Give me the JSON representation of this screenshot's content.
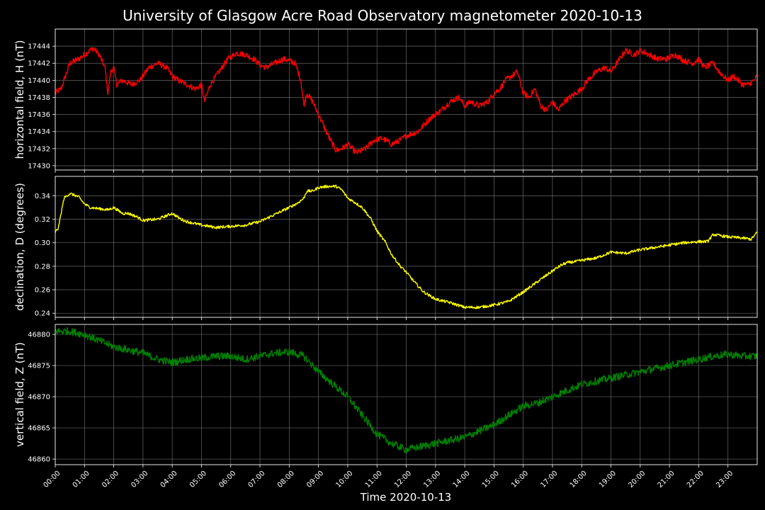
{
  "chart_data": {
    "type": "line",
    "title": "University of Glasgow Acre Road Observatory magnetometer 2020-10-13",
    "xlabel": "Time 2020-10-13",
    "x_unit": "hours",
    "xlim": [
      0,
      24
    ],
    "x_ticks": [
      0,
      1,
      2,
      3,
      4,
      5,
      6,
      7,
      8,
      9,
      10,
      11,
      12,
      13,
      14,
      15,
      16,
      17,
      18,
      19,
      20,
      21,
      22,
      23
    ],
    "x_tick_labels": [
      "00:00",
      "01:00",
      "02:00",
      "03:00",
      "04:00",
      "05:00",
      "06:00",
      "07:00",
      "08:00",
      "09:00",
      "10:00",
      "11:00",
      "12:00",
      "13:00",
      "14:00",
      "15:00",
      "16:00",
      "17:00",
      "18:00",
      "19:00",
      "20:00",
      "21:00",
      "22:00",
      "23:00"
    ],
    "grid": true,
    "background": "#000000",
    "text_color": "#ffffff",
    "grid_color": "#808080",
    "panels": [
      {
        "ylabel": "horizontal field, H (nT)",
        "color": "#ff0000",
        "ylim": [
          17429.5,
          17446
        ],
        "y_ticks": [
          17430,
          17432,
          17434,
          17436,
          17438,
          17440,
          17442,
          17444
        ],
        "y_tick_labels": [
          "17430",
          "17432",
          "17434",
          "17436",
          "17438",
          "17440",
          "17442",
          "17444"
        ],
        "noise": 0.35,
        "x": [
          0,
          0.2,
          0.5,
          0.8,
          1.0,
          1.3,
          1.5,
          1.7,
          1.8,
          1.9,
          2.0,
          2.1,
          2.3,
          2.6,
          2.9,
          3.0,
          3.2,
          3.5,
          3.8,
          4.0,
          4.2,
          4.5,
          4.8,
          5.0,
          5.1,
          5.3,
          5.6,
          5.9,
          6.2,
          6.5,
          6.8,
          7.0,
          7.2,
          7.5,
          7.8,
          8.0,
          8.2,
          8.4,
          8.5,
          8.6,
          8.8,
          9.0,
          9.2,
          9.4,
          9.6,
          9.8,
          10.0,
          10.3,
          10.6,
          10.9,
          11.2,
          11.5,
          11.8,
          12.0,
          12.4,
          12.8,
          13.2,
          13.5,
          13.8,
          14.0,
          14.2,
          14.5,
          14.8,
          15.0,
          15.2,
          15.4,
          15.6,
          15.8,
          16.0,
          16.2,
          16.4,
          16.6,
          16.8,
          17.0,
          17.2,
          17.4,
          17.6,
          17.8,
          18.0,
          18.2,
          18.5,
          18.8,
          19.0,
          19.2,
          19.5,
          19.8,
          20.0,
          20.3,
          20.6,
          20.9,
          21.2,
          21.5,
          21.8,
          22.0,
          22.2,
          22.5,
          22.7,
          23.0,
          23.2,
          23.5,
          23.7,
          23.9,
          24.0
        ],
        "y": [
          17438.5,
          17439,
          17442,
          17442.5,
          17443,
          17443.8,
          17443,
          17441.5,
          17438.5,
          17441,
          17441.5,
          17439.5,
          17440,
          17439.5,
          17440,
          17440.5,
          17441.5,
          17442,
          17441.5,
          17440.5,
          17440,
          17439.5,
          17439,
          17439.5,
          17437.5,
          17439.5,
          17441,
          17442.5,
          17443.2,
          17443,
          17442.5,
          17441.8,
          17441.5,
          17442,
          17442.5,
          17442.3,
          17442,
          17440,
          17437,
          17438.5,
          17437.5,
          17436,
          17434.5,
          17433,
          17431.8,
          17432,
          17432.5,
          17431.5,
          17432,
          17433,
          17433.2,
          17432.5,
          17433,
          17433.5,
          17434,
          17435.5,
          17436.5,
          17437.5,
          17438,
          17437,
          17437.5,
          17437,
          17437.5,
          17438.5,
          17439,
          17440,
          17440.5,
          17441,
          17438.5,
          17438,
          17439,
          17437,
          17436.5,
          17437.5,
          17436.5,
          17437.5,
          17438,
          17438.5,
          17439,
          17440,
          17441,
          17441.5,
          17441,
          17442,
          17443.5,
          17443,
          17443.5,
          17443,
          17442.5,
          17442.5,
          17443,
          17442.3,
          17442,
          17442.5,
          17441.5,
          17442,
          17441,
          17440,
          17440.5,
          17439.5,
          17439.5,
          17440,
          17440.5
        ]
      },
      {
        "ylabel": "declination, D (degrees)",
        "color": "#ffff00",
        "ylim": [
          0.2365,
          0.3565
        ],
        "y_ticks": [
          0.24,
          0.26,
          0.28,
          0.3,
          0.32,
          0.34
        ],
        "y_tick_labels": [
          "0.24",
          "0.26",
          "0.28",
          "0.30",
          "0.32",
          "0.34"
        ],
        "noise": 0.0012,
        "x": [
          0,
          0.1,
          0.3,
          0.5,
          0.8,
          1.0,
          1.2,
          1.5,
          1.8,
          2.0,
          2.3,
          2.5,
          2.8,
          3.0,
          3.5,
          4.0,
          4.3,
          4.5,
          5.0,
          5.5,
          6.0,
          6.5,
          7.0,
          7.5,
          8.0,
          8.3,
          8.5,
          8.6,
          8.8,
          9.0,
          9.3,
          9.6,
          9.8,
          10.0,
          10.2,
          10.5,
          10.8,
          11.0,
          11.3,
          11.5,
          11.8,
          12.0,
          12.3,
          12.6,
          13.0,
          13.5,
          14.0,
          14.5,
          15.0,
          15.5,
          16.0,
          16.5,
          17.0,
          17.3,
          17.5,
          17.8,
          18.0,
          18.5,
          19.0,
          19.5,
          20.0,
          20.5,
          21.0,
          21.5,
          22.0,
          22.3,
          22.5,
          23.0,
          23.5,
          23.8,
          24.0
        ],
        "y": [
          0.309,
          0.312,
          0.338,
          0.342,
          0.339,
          0.333,
          0.33,
          0.329,
          0.328,
          0.33,
          0.325,
          0.325,
          0.322,
          0.319,
          0.32,
          0.325,
          0.32,
          0.318,
          0.315,
          0.313,
          0.314,
          0.315,
          0.318,
          0.324,
          0.33,
          0.334,
          0.338,
          0.344,
          0.344,
          0.347,
          0.348,
          0.348,
          0.345,
          0.338,
          0.335,
          0.33,
          0.32,
          0.31,
          0.3,
          0.29,
          0.28,
          0.275,
          0.266,
          0.258,
          0.252,
          0.249,
          0.245,
          0.245,
          0.247,
          0.25,
          0.258,
          0.267,
          0.276,
          0.281,
          0.283,
          0.284,
          0.285,
          0.287,
          0.292,
          0.291,
          0.294,
          0.296,
          0.298,
          0.3,
          0.301,
          0.301,
          0.307,
          0.305,
          0.304,
          0.303,
          0.309
        ]
      },
      {
        "ylabel": "vertical field, Z (nT)",
        "color": "#008000",
        "ylim": [
          46859.1,
          46881.6
        ],
        "y_ticks": [
          46860,
          46865,
          46870,
          46875,
          46880
        ],
        "y_tick_labels": [
          "46860",
          "46865",
          "46870",
          "46875",
          "46880"
        ],
        "noise": 0.6,
        "x": [
          0,
          0.5,
          1.0,
          1.5,
          2.0,
          2.5,
          3.0,
          3.5,
          4.0,
          4.5,
          5.0,
          5.5,
          6.0,
          6.5,
          7.0,
          7.5,
          8.0,
          8.5,
          9.0,
          9.5,
          10.0,
          10.5,
          11.0,
          11.5,
          12.0,
          12.5,
          13.0,
          13.5,
          14.0,
          14.5,
          15.0,
          15.5,
          16.0,
          16.5,
          17.0,
          17.5,
          18.0,
          18.5,
          19.0,
          19.5,
          20.0,
          20.5,
          21.0,
          21.5,
          22.0,
          22.5,
          23.0,
          23.5,
          24.0
        ],
        "y": [
          46880.5,
          46880.5,
          46880,
          46879,
          46878,
          46877.5,
          46877,
          46876,
          46875.5,
          46876,
          46876.2,
          46876.5,
          46876.5,
          46876,
          46876.5,
          46877,
          46877.2,
          46876.5,
          46874,
          46872,
          46870,
          46867,
          46864,
          46862.5,
          46861.5,
          46862,
          46862.5,
          46863,
          46863.5,
          46864.5,
          46865.5,
          46867,
          46868.5,
          46869,
          46870,
          46871,
          46872,
          46872.5,
          46873,
          46873.5,
          46874,
          46874.5,
          46875,
          46875.5,
          46876,
          46876.5,
          46876.8,
          46876.5,
          46876.5
        ]
      }
    ]
  }
}
